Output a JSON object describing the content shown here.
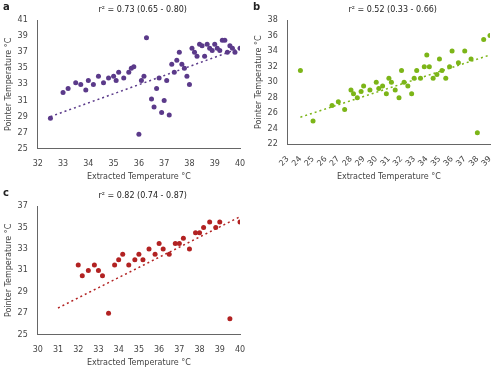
{
  "chart_data": [
    {
      "type": "scatter",
      "title": "a",
      "annotation": "r² = 0.73 (0.65 - 0.80)",
      "xlabel": "Extracted Temperature °C",
      "ylabel": "Pointer Temperature °C",
      "xlim": [
        32,
        40
      ],
      "ylim": [
        25,
        41
      ],
      "xticks": [
        32,
        33,
        34,
        35,
        36,
        37,
        38,
        39,
        40
      ],
      "yticks": [
        25,
        27,
        29,
        31,
        33,
        35,
        37,
        39,
        41
      ],
      "grid": false,
      "series": [
        {
          "type": "scatter",
          "marker": "circle",
          "color": "#5B3A8A",
          "x": [
            32.5,
            33.0,
            33.2,
            33.5,
            33.7,
            33.9,
            34.0,
            34.2,
            34.4,
            34.6,
            34.8,
            35.0,
            35.1,
            35.2,
            35.4,
            35.6,
            35.7,
            35.8,
            36.0,
            36.1,
            36.2,
            36.3,
            36.5,
            36.6,
            36.7,
            36.8,
            36.9,
            37.0,
            37.1,
            37.2,
            37.3,
            37.4,
            37.5,
            37.6,
            37.7,
            37.8,
            37.9,
            38.0,
            38.1,
            38.2,
            38.3,
            38.4,
            38.5,
            38.6,
            38.7,
            38.8,
            38.9,
            39.0,
            39.1,
            39.2,
            39.3,
            39.4,
            39.5,
            39.6,
            39.7,
            39.8,
            40.0
          ],
          "values": [
            28.8,
            32.0,
            32.5,
            33.2,
            33.0,
            32.3,
            33.5,
            33.0,
            34.0,
            33.2,
            33.8,
            34.0,
            33.5,
            34.5,
            33.8,
            34.5,
            35.0,
            35.2,
            26.8,
            33.5,
            34.0,
            38.8,
            31.2,
            30.2,
            32.5,
            33.8,
            29.5,
            31.0,
            33.5,
            29.2,
            35.5,
            34.5,
            36.0,
            37.0,
            35.5,
            35.0,
            34.0,
            33.0,
            37.5,
            37.0,
            36.5,
            38.0,
            37.8,
            36.5,
            38.0,
            37.5,
            37.2,
            38.0,
            37.5,
            37.2,
            38.5,
            38.5,
            37.0,
            37.8,
            37.5,
            37.0,
            37.5
          ]
        },
        {
          "type": "line",
          "line_style": "dotted",
          "color": "#5B3A8A",
          "x": [
            32.5,
            40.0
          ],
          "values": [
            29.0,
            37.5
          ]
        }
      ]
    },
    {
      "type": "scatter",
      "title": "b",
      "annotation": "r² = 0.52 (0.33 - 0.66)",
      "xlabel": "Extracted Temperature °C",
      "ylabel": "Pointer Temperature °C",
      "xlim": [
        23,
        39
      ],
      "ylim": [
        22,
        38
      ],
      "xticks": [
        23,
        24,
        25,
        26,
        27,
        28,
        29,
        30,
        31,
        32,
        33,
        34,
        35,
        36,
        37,
        38,
        39
      ],
      "yticks": [
        22,
        24,
        26,
        28,
        30,
        32,
        34,
        36,
        38
      ],
      "grid": false,
      "series": [
        {
          "type": "scatter",
          "marker": "circle",
          "color": "#7CB518",
          "x": [
            24.0,
            25.0,
            26.5,
            27.0,
            27.5,
            28.0,
            28.2,
            28.5,
            28.8,
            29.0,
            29.5,
            30.0,
            30.2,
            30.5,
            30.8,
            31.0,
            31.2,
            31.5,
            31.8,
            32.0,
            32.2,
            32.5,
            32.8,
            33.0,
            33.2,
            33.5,
            33.8,
            34.0,
            34.2,
            34.5,
            34.8,
            35.0,
            35.2,
            35.5,
            35.8,
            36.0,
            36.5,
            37.0,
            37.5,
            38.0,
            38.5,
            39.0
          ],
          "values": [
            31.5,
            25.0,
            27.0,
            27.5,
            26.5,
            29.0,
            28.5,
            28.0,
            28.8,
            29.5,
            29.0,
            30.0,
            29.2,
            29.5,
            28.5,
            30.5,
            30.0,
            29.0,
            28.0,
            31.5,
            30.0,
            29.5,
            28.5,
            30.5,
            31.5,
            30.5,
            32.0,
            33.5,
            32.0,
            30.5,
            31.0,
            33.0,
            31.5,
            30.5,
            32.0,
            34.0,
            32.5,
            34.0,
            33.0,
            23.5,
            35.5,
            36.0
          ]
        },
        {
          "type": "line",
          "line_style": "dotted",
          "color": "#7CB518",
          "x": [
            24.0,
            39.0
          ],
          "values": [
            25.5,
            33.5
          ]
        }
      ]
    },
    {
      "type": "scatter",
      "title": "c",
      "annotation": "r² = 0.82 (0.74 - 0.87)",
      "xlabel": "Extracted Temperature °C",
      "ylabel": "Pointer Temperature °C",
      "xlim": [
        30,
        40
      ],
      "ylim": [
        25,
        37
      ],
      "xticks": [
        30,
        31,
        32,
        33,
        34,
        35,
        36,
        37,
        38,
        39,
        40
      ],
      "yticks": [
        25,
        27,
        29,
        31,
        33,
        35,
        37
      ],
      "grid": false,
      "series": [
        {
          "type": "scatter",
          "marker": "circle",
          "color": "#B22222",
          "x": [
            32.0,
            32.2,
            32.5,
            32.8,
            33.0,
            33.2,
            33.5,
            33.8,
            34.0,
            34.2,
            34.5,
            34.8,
            35.0,
            35.2,
            35.5,
            35.8,
            36.0,
            36.2,
            36.5,
            36.8,
            37.0,
            37.2,
            37.5,
            37.8,
            38.0,
            38.2,
            38.5,
            38.8,
            39.0,
            39.5,
            40.0
          ],
          "values": [
            31.5,
            30.5,
            31.0,
            31.5,
            31.0,
            30.5,
            27.0,
            31.5,
            32.0,
            32.5,
            31.5,
            32.0,
            32.5,
            32.0,
            33.0,
            32.5,
            33.5,
            33.0,
            32.5,
            33.5,
            33.5,
            34.0,
            33.0,
            34.5,
            34.5,
            35.0,
            35.5,
            35.0,
            35.5,
            26.5,
            35.5
          ]
        },
        {
          "type": "line",
          "line_style": "dotted",
          "color": "#B22222",
          "x": [
            31.0,
            40.0
          ],
          "values": [
            27.5,
            36.0
          ]
        }
      ]
    }
  ]
}
